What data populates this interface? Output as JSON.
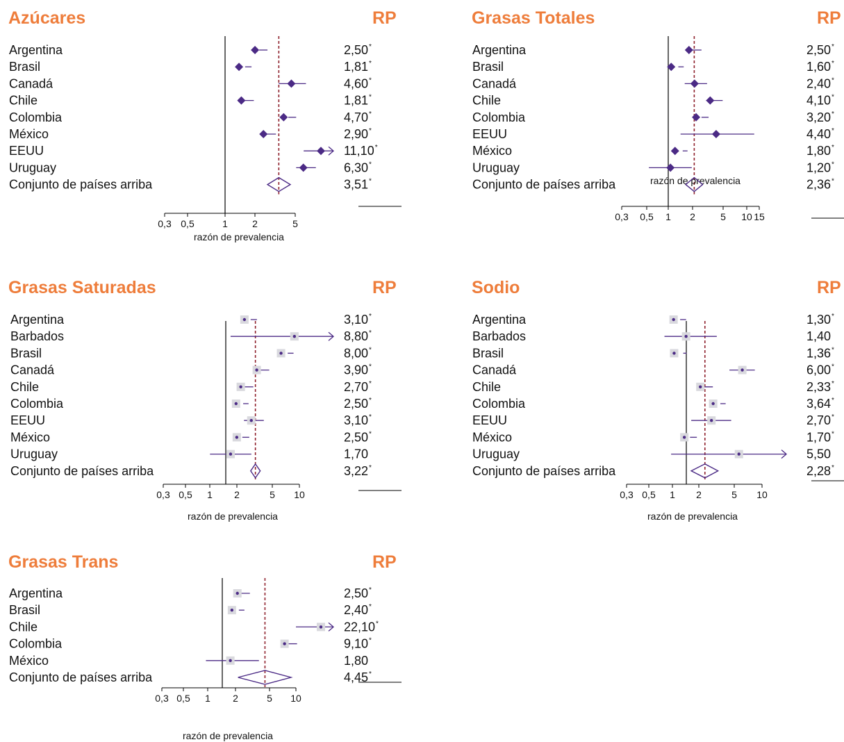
{
  "colors": {
    "title": "#ee7d3b",
    "marker": "#4b2a85",
    "ref_line": "#8e1f2b",
    "box": "#d9d9de",
    "text": "#111111"
  },
  "common": {
    "rp_header": "RP",
    "xlabel": "razón de prevalencia"
  },
  "chart_data": [
    {
      "type": "forest",
      "title": "Azúcares",
      "xlabel": "razón de prevalencia",
      "x_scale": "log",
      "xlim": [
        0.3,
        5
      ],
      "ticks": [
        "0,3",
        "0,5",
        "1",
        "2",
        "5"
      ],
      "null_value": 1,
      "pooled_line": 3.51,
      "rows": [
        {
          "label": "Argentina",
          "value": 2.5,
          "lo": 2.3,
          "hi": 2.75,
          "rp": "2,50",
          "sig": true
        },
        {
          "label": "Brasil",
          "value": 1.81,
          "lo": 1.7,
          "hi": 1.95,
          "rp": "1,81",
          "sig": true
        },
        {
          "label": "Canadá",
          "value": 4.6,
          "lo": 3.5,
          "hi": 6.3,
          "rp": "4,60",
          "sig": true
        },
        {
          "label": "Chile",
          "value": 1.81,
          "lo": 1.6,
          "hi": 2.05,
          "rp": "1,81",
          "sig": true
        },
        {
          "label": "Colombia",
          "value": 4.7,
          "lo": 4.3,
          "hi": 5.1,
          "rp": "4,70",
          "sig": true
        },
        {
          "label": "México",
          "value": 2.9,
          "lo": 2.55,
          "hi": 3.3,
          "rp": "2,90",
          "sig": true
        },
        {
          "label": "EEUU",
          "value": 11.1,
          "lo": 6.0,
          "hi": 20.5,
          "rp": "11,10",
          "sig": true,
          "arrow": true
        },
        {
          "label": "Uruguay",
          "value": 6.3,
          "lo": 5.1,
          "hi": 7.8,
          "rp": "6,30",
          "sig": true
        },
        {
          "label": "Conjunto de países arriba",
          "value": 3.51,
          "lo": 2.75,
          "hi": 4.5,
          "rp": "3,51",
          "sig": true,
          "pooled": true
        }
      ]
    },
    {
      "type": "forest",
      "title": "Grasas Totales",
      "xlabel": "razón de prevalencia",
      "x_scale": "log",
      "xlim": [
        0.3,
        15
      ],
      "ticks": [
        "0,3",
        "0,5",
        "1",
        "2",
        "5",
        "10",
        "15"
      ],
      "null_value": 1,
      "pooled_line": 2.36,
      "rows": [
        {
          "label": "Argentina",
          "value": 2.5,
          "lo": 2.2,
          "hi": 2.9,
          "rp": "2,50",
          "sig": true
        },
        {
          "label": "Brasil",
          "value": 1.6,
          "lo": 1.5,
          "hi": 1.75,
          "rp": "1,60",
          "sig": true
        },
        {
          "label": "Canadá",
          "value": 2.4,
          "lo": 1.8,
          "hi": 3.4,
          "rp": "2,40",
          "sig": true
        },
        {
          "label": "Chile",
          "value": 4.1,
          "lo": 3.3,
          "hi": 5.3,
          "rp": "4,10",
          "sig": true
        },
        {
          "label": "Colombia",
          "value": 3.2,
          "lo": 2.9,
          "hi": 3.55,
          "rp": "3,20",
          "sig": true
        },
        {
          "label": "EEUU",
          "value": 4.4,
          "lo": 1.6,
          "hi": 13.0,
          "rp": "4,40",
          "sig": true
        },
        {
          "label": "México",
          "value": 1.8,
          "lo": 1.7,
          "hi": 1.95,
          "rp": "1,80",
          "sig": true
        },
        {
          "label": "Uruguay",
          "value": 1.2,
          "lo": 0.65,
          "hi": 2.2,
          "rp": "1,20",
          "sig": true
        },
        {
          "label": "Conjunto de países arriba",
          "value": 2.36,
          "lo": 1.85,
          "hi": 3.0,
          "rp": "2,36",
          "sig": true,
          "pooled": true
        }
      ]
    },
    {
      "type": "forest",
      "title": "Grasas Saturadas",
      "xlabel": "razón de prevalencia",
      "x_scale": "log",
      "xlim": [
        0.3,
        10
      ],
      "ticks": [
        "0,3",
        "0,5",
        "1",
        "2",
        "5",
        "10"
      ],
      "null_value": 1,
      "pooled_line": 3.22,
      "rows": [
        {
          "label": "Argentina",
          "value": 3.1,
          "lo": 2.85,
          "hi": 3.35,
          "rp": "3,10",
          "sig": true
        },
        {
          "label": "Barbados",
          "value": 8.8,
          "lo": 1.7,
          "hi": 45.0,
          "rp": "8,80",
          "sig": true,
          "arrow": true
        },
        {
          "label": "Brasil",
          "value": 8.0,
          "lo": 7.4,
          "hi": 8.6,
          "rp": "8,00",
          "sig": true
        },
        {
          "label": "Canadá",
          "value": 3.9,
          "lo": 3.3,
          "hi": 4.6,
          "rp": "3,90",
          "sig": true
        },
        {
          "label": "Chile",
          "value": 2.7,
          "lo": 2.4,
          "hi": 3.05,
          "rp": "2,70",
          "sig": true
        },
        {
          "label": "Colombia",
          "value": 2.5,
          "lo": 2.35,
          "hi": 2.7,
          "rp": "2,50",
          "sig": true
        },
        {
          "label": "EEUU",
          "value": 3.1,
          "lo": 2.4,
          "hi": 4.0,
          "rp": "3,10",
          "sig": true
        },
        {
          "label": "México",
          "value": 2.5,
          "lo": 2.3,
          "hi": 2.75,
          "rp": "2,50",
          "sig": true
        },
        {
          "label": "Uruguay",
          "value": 1.7,
          "lo": 1.0,
          "hi": 2.9,
          "rp": "1,70",
          "sig": false
        },
        {
          "label": "Conjunto de países arriba",
          "value": 3.22,
          "lo": 2.85,
          "hi": 3.65,
          "rp": "3,22",
          "sig": true,
          "pooled": true
        }
      ]
    },
    {
      "type": "forest",
      "title": "Sodio",
      "xlabel": "razón de prevalencia",
      "x_scale": "log",
      "xlim": [
        0.3,
        10
      ],
      "ticks": [
        "0,3",
        "0,5",
        "1",
        "2",
        "5",
        "10"
      ],
      "null_value": 1,
      "pooled_line": 2.28,
      "rows": [
        {
          "label": "Argentina",
          "value": 1.3,
          "lo": 1.2,
          "hi": 1.4,
          "rp": "1,30",
          "sig": true
        },
        {
          "label": "Barbados",
          "value": 1.4,
          "lo": 0.8,
          "hi": 3.1,
          "rp": "1,40",
          "sig": false
        },
        {
          "label": "Brasil",
          "value": 1.36,
          "lo": 1.3,
          "hi": 1.42,
          "rp": "1,36",
          "sig": true
        },
        {
          "label": "Canadá",
          "value": 6.0,
          "lo": 4.3,
          "hi": 8.3,
          "rp": "6,00",
          "sig": true
        },
        {
          "label": "Chile",
          "value": 2.33,
          "lo": 1.95,
          "hi": 2.8,
          "rp": "2,33",
          "sig": true
        },
        {
          "label": "Colombia",
          "value": 3.64,
          "lo": 3.4,
          "hi": 3.9,
          "rp": "3,64",
          "sig": true
        },
        {
          "label": "EEUU",
          "value": 2.7,
          "lo": 1.6,
          "hi": 4.5,
          "rp": "2,70",
          "sig": true
        },
        {
          "label": "México",
          "value": 1.7,
          "lo": 1.55,
          "hi": 1.85,
          "rp": "1,70",
          "sig": true
        },
        {
          "label": "Uruguay",
          "value": 5.5,
          "lo": 0.95,
          "hi": 32.0,
          "rp": "5,50",
          "sig": false,
          "arrow": true
        },
        {
          "label": "Conjunto de países arriba",
          "value": 2.28,
          "lo": 1.6,
          "hi": 3.2,
          "rp": "2,28",
          "sig": true,
          "pooled": true
        }
      ]
    },
    {
      "type": "forest",
      "title": "Grasas Trans",
      "xlabel": "razón de prevalencia",
      "x_scale": "log",
      "xlim": [
        0.3,
        10
      ],
      "ticks": [
        "0,3",
        "0,5",
        "1",
        "2",
        "5",
        "10"
      ],
      "null_value": 1,
      "pooled_line": 4.45,
      "rows": [
        {
          "label": "Argentina",
          "value": 2.5,
          "lo": 2.1,
          "hi": 3.0,
          "rp": "2,50",
          "sig": true
        },
        {
          "label": "Brasil",
          "value": 2.4,
          "lo": 2.25,
          "hi": 2.6,
          "rp": "2,40",
          "sig": true
        },
        {
          "label": "Chile",
          "value": 22.1,
          "lo": 10.0,
          "hi": 40.0,
          "rp": "22,10",
          "sig": true,
          "arrow": true
        },
        {
          "label": "Colombia",
          "value": 9.1,
          "lo": 8.0,
          "hi": 10.3,
          "rp": "9,10",
          "sig": true
        },
        {
          "label": "México",
          "value": 1.8,
          "lo": 0.95,
          "hi": 3.8,
          "rp": "1,80",
          "sig": false
        },
        {
          "label": "Conjunto de países arriba",
          "value": 4.45,
          "lo": 2.2,
          "hi": 8.8,
          "rp": "4,45",
          "sig": true,
          "pooled": true
        }
      ]
    }
  ]
}
